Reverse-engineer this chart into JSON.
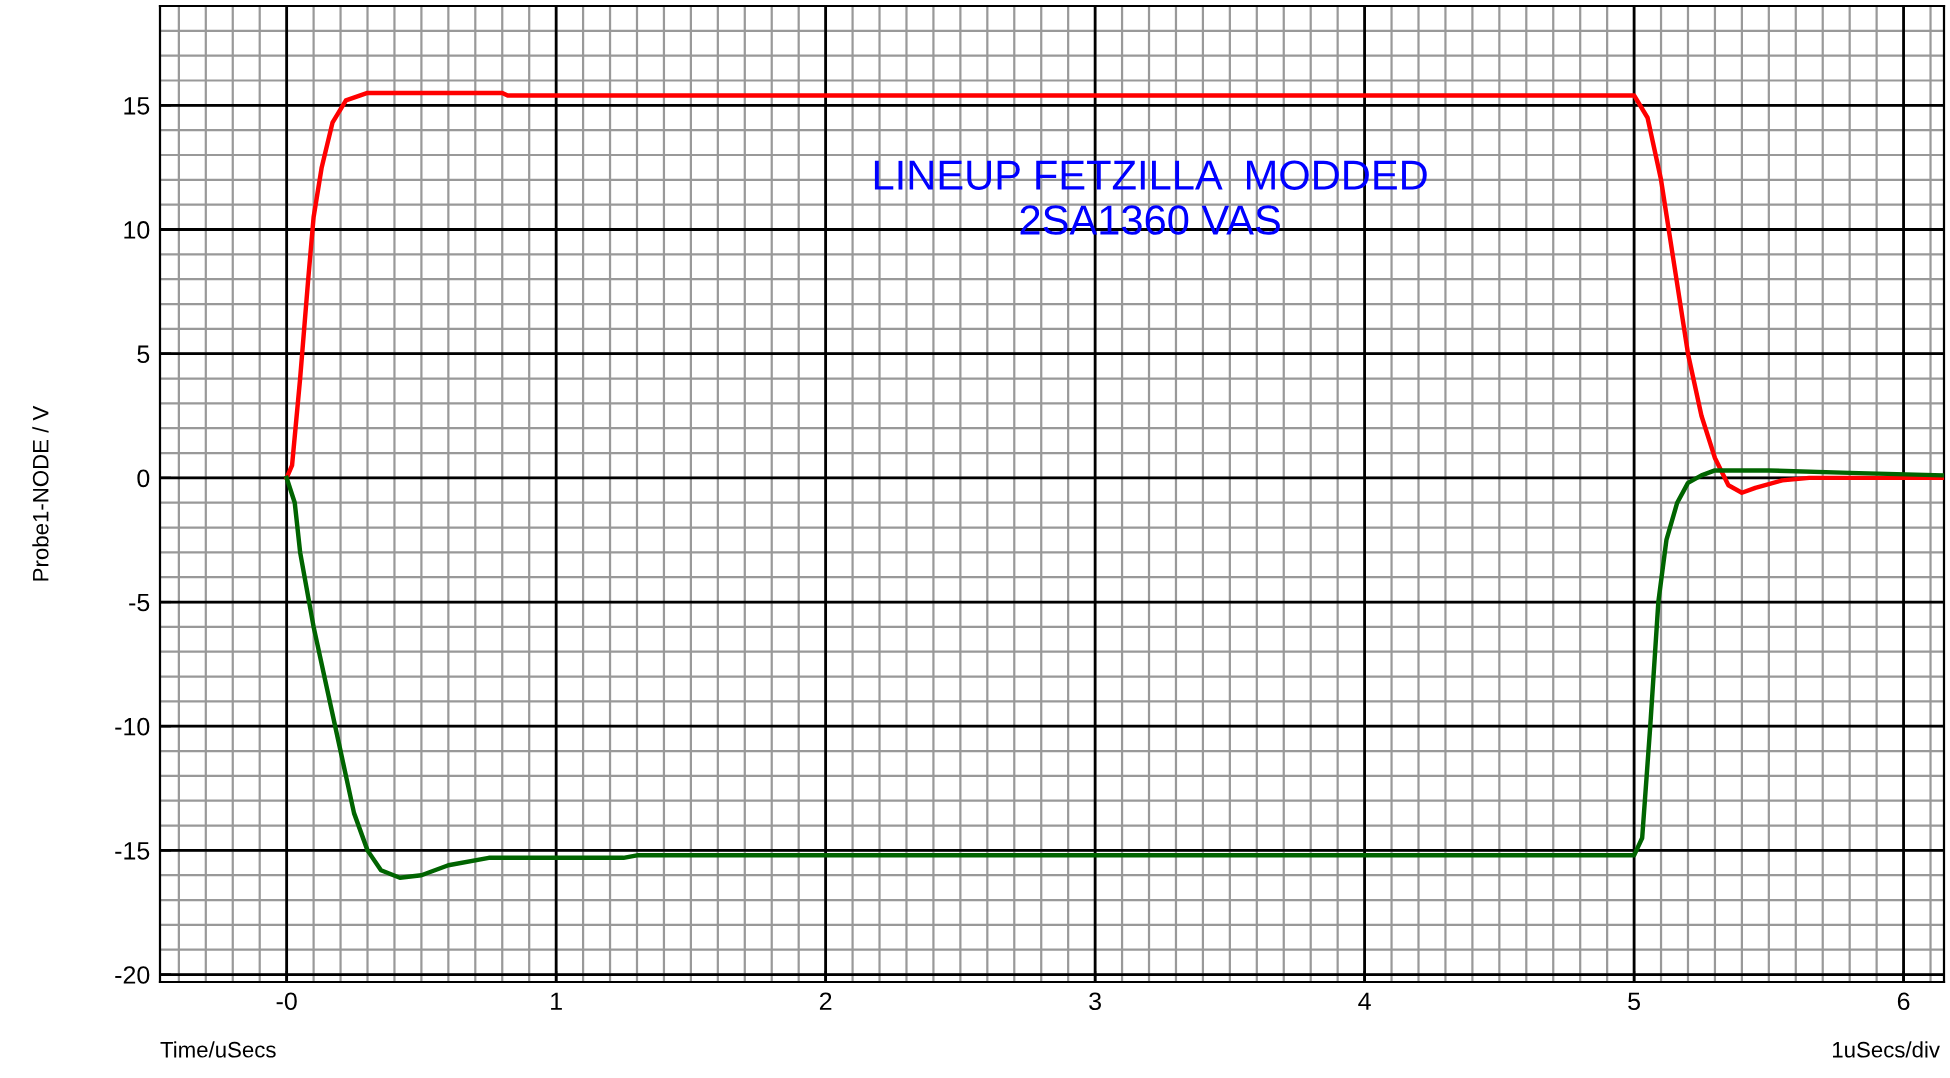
{
  "chart_data": {
    "type": "line",
    "ylabel": "Probe1-NODE / V",
    "xlabel": "Time/uSecs",
    "annotations": [
      "LINEUP FETZILLA  MODDED\n2SA1360 VAS",
      "1uSecs/div"
    ],
    "xlim": [
      -0.47,
      6.15
    ],
    "ylim": [
      -20.3,
      19
    ],
    "xticks": [
      {
        "value": 0,
        "label": "-0"
      },
      1,
      2,
      3,
      4,
      5,
      6
    ],
    "yticks": [
      -20,
      -15,
      -10,
      -5,
      0,
      5,
      10,
      15
    ],
    "grid": true,
    "marker": "none",
    "line_style": "solid",
    "series": [
      {
        "color": "#ff0000",
        "x": [
          0,
          0.02,
          0.05,
          0.08,
          0.1,
          0.13,
          0.17,
          0.22,
          0.3,
          0.8,
          0.82,
          5.0,
          5.05,
          5.1,
          5.15,
          5.2,
          5.25,
          5.3,
          5.35,
          5.4,
          5.45,
          5.55,
          5.65,
          6.15
        ],
        "values": [
          0,
          0.5,
          4,
          8,
          10.5,
          12.5,
          14.3,
          15.2,
          15.5,
          15.5,
          15.4,
          15.4,
          14.5,
          12,
          8.5,
          5,
          2.5,
          0.8,
          -0.3,
          -0.6,
          -0.4,
          -0.1,
          0,
          0
        ]
      },
      {
        "color": "#006400",
        "x": [
          0,
          0.03,
          0.05,
          0.1,
          0.15,
          0.2,
          0.25,
          0.3,
          0.35,
          0.42,
          0.5,
          0.6,
          0.75,
          1.25,
          1.3,
          5.0,
          5.03,
          5.06,
          5.09,
          5.12,
          5.16,
          5.2,
          5.25,
          5.3,
          5.5,
          5.8,
          6.15
        ],
        "values": [
          0,
          -1,
          -3,
          -6,
          -8.5,
          -11,
          -13.5,
          -15,
          -15.8,
          -16.1,
          -16,
          -15.6,
          -15.3,
          -15.3,
          -15.2,
          -15.2,
          -14.5,
          -10,
          -5,
          -2.5,
          -1,
          -0.2,
          0.1,
          0.3,
          0.3,
          0.2,
          0.1
        ]
      }
    ]
  }
}
